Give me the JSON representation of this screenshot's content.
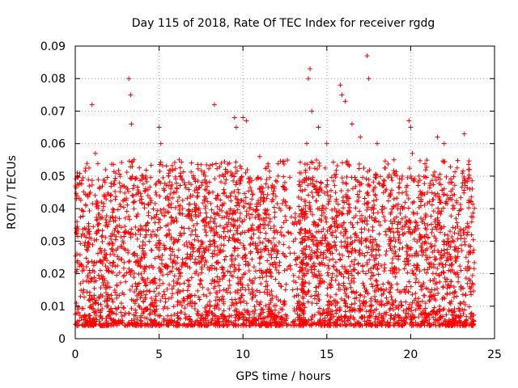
{
  "chart_data": {
    "type": "scatter",
    "title": "Day 115 of 2018, Rate Of TEC Index for receiver rgdg",
    "xlabel": "GPS time / hours",
    "ylabel": "ROTI / TECUs",
    "xlim": [
      0,
      25
    ],
    "ylim": [
      0,
      0.09
    ],
    "x_ticks": [
      "0",
      "5",
      "10",
      "15",
      "20",
      "25"
    ],
    "y_ticks": [
      "0",
      "0.01",
      "0.02",
      "0.03",
      "0.04",
      "0.05",
      "0.06",
      "0.07",
      "0.08",
      "0.09"
    ],
    "grid": true,
    "marker": "+",
    "color": "#ff0000",
    "series": [
      {
        "x": [
          0.0,
          0.05,
          0.1,
          0.2,
          0.9,
          1.0,
          1.2,
          1.8,
          2.1,
          3.2,
          3.3,
          3.35,
          3.5,
          4.2,
          4.8,
          5.0,
          5.1,
          6.2,
          6.5,
          7.0,
          8.0,
          8.3,
          8.6,
          9.5,
          9.6,
          10.0,
          10.2,
          11.0,
          11.5,
          12.1,
          12.5,
          13.0,
          13.8,
          13.9,
          14.0,
          14.1,
          14.5,
          15.0,
          15.8,
          15.9,
          16.1,
          16.5,
          17.0,
          17.4,
          17.5,
          18.0,
          18.3,
          18.8,
          19.5,
          19.9,
          20.0,
          20.1,
          20.5,
          21.0,
          21.6,
          22.0,
          22.5,
          23.0,
          23.2,
          23.5
        ],
        "y": [
          0.047,
          0.034,
          0.044,
          0.008,
          0.045,
          0.072,
          0.057,
          0.052,
          0.044,
          0.08,
          0.075,
          0.066,
          0.055,
          0.05,
          0.045,
          0.065,
          0.06,
          0.055,
          0.048,
          0.044,
          0.045,
          0.072,
          0.05,
          0.068,
          0.065,
          0.068,
          0.067,
          0.056,
          0.053,
          0.05,
          0.048,
          0.03,
          0.06,
          0.08,
          0.083,
          0.07,
          0.065,
          0.06,
          0.078,
          0.075,
          0.073,
          0.066,
          0.062,
          0.087,
          0.08,
          0.06,
          0.047,
          0.044,
          0.05,
          0.067,
          0.065,
          0.057,
          0.05,
          0.045,
          0.062,
          0.06,
          0.046,
          0.04,
          0.063,
          0.052
        ]
      }
    ]
  }
}
